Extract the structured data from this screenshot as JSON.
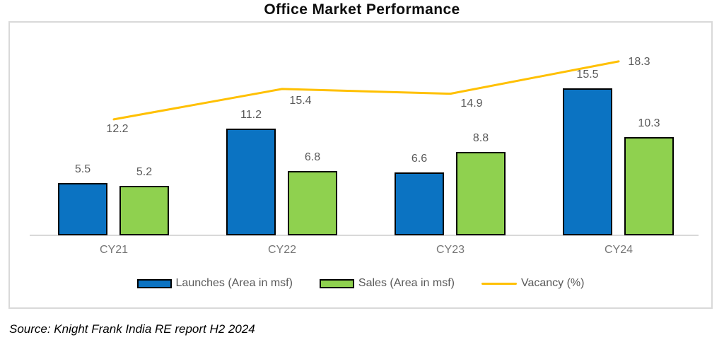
{
  "page": {
    "title": "Office Market Performance",
    "source": "Source: Knight Frank India RE report H2 2024"
  },
  "chart_data": {
    "type": "bar",
    "subtype": "grouped-bars-with-line-overlay",
    "title": "Office Market Performance",
    "categories": [
      "CY21",
      "CY22",
      "CY23",
      "CY24"
    ],
    "series": [
      {
        "name": "Launches (Area in msf)",
        "type": "bar",
        "color": "#0B73C2",
        "values": [
          5.5,
          11.2,
          6.6,
          15.5
        ]
      },
      {
        "name": "Sales (Area in msf)",
        "type": "bar",
        "color": "#8FD14F",
        "values": [
          5.2,
          6.8,
          8.8,
          10.3
        ]
      },
      {
        "name": "Vacancy (%)",
        "type": "line",
        "color": "#FFC000",
        "values": [
          12.2,
          15.4,
          14.9,
          18.3
        ]
      }
    ],
    "data_labels": true,
    "y_axis_visible": false,
    "gridlines": false,
    "legend_position": "bottom",
    "label_color": "#595959",
    "axis_color": "#d9d9d9",
    "source": "Source: Knight Frank India RE report H2 2024"
  }
}
